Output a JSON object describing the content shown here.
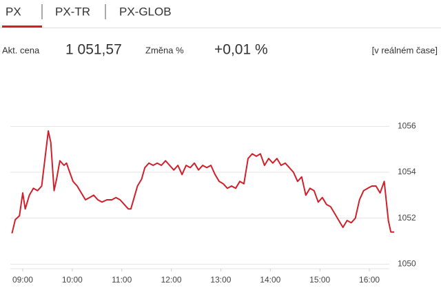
{
  "tabs": [
    "PX",
    "PX-TR",
    "PX-GLOB"
  ],
  "quote": {
    "price_label": "Akt. cena",
    "price": "1 051,57",
    "change_label": "Změna %",
    "change": "+0,01 %",
    "realtime": "[v reálném čase]"
  },
  "chart_data": {
    "type": "line",
    "color": "#d11f2a",
    "grid": true,
    "x": [
      "08:47",
      "08:51",
      "08:56",
      "09:00",
      "09:03",
      "09:08",
      "09:13",
      "09:18",
      "09:23",
      "09:28",
      "09:31",
      "09:34",
      "09:38",
      "09:41",
      "09:45",
      "09:50",
      "09:53",
      "09:57",
      "10:01",
      "10:06",
      "10:11",
      "10:16",
      "10:21",
      "10:26",
      "10:31",
      "10:36",
      "10:42",
      "10:48",
      "10:53",
      "10:58",
      "11:03",
      "11:08",
      "11:11",
      "11:15",
      "11:19",
      "11:24",
      "11:28",
      "11:33",
      "11:38",
      "11:43",
      "11:48",
      "11:53",
      "11:58",
      "12:03",
      "12:08",
      "12:13",
      "12:18",
      "12:23",
      "12:28",
      "12:33",
      "12:38",
      "12:43",
      "12:48",
      "12:53",
      "12:58",
      "13:03",
      "13:08",
      "13:13",
      "13:18",
      "13:23",
      "13:28",
      "13:33",
      "13:38",
      "13:43",
      "13:48",
      "13:53",
      "13:58",
      "14:03",
      "14:08",
      "14:13",
      "14:18",
      "14:23",
      "14:28",
      "14:33",
      "14:38",
      "14:43",
      "14:48",
      "14:53",
      "14:58",
      "15:03",
      "15:08",
      "15:13",
      "15:18",
      "15:23",
      "15:28",
      "15:33",
      "15:38",
      "15:43",
      "15:48",
      "15:53",
      "15:58",
      "16:03",
      "16:08",
      "16:13",
      "16:18",
      "16:23",
      "16:26",
      "16:30"
    ],
    "values": [
      1051.34,
      1051.94,
      1052.1,
      1053.1,
      1052.4,
      1053.0,
      1053.3,
      1053.2,
      1053.4,
      1054.9,
      1055.8,
      1055.3,
      1053.2,
      1053.7,
      1054.5,
      1054.3,
      1054.4,
      1054.0,
      1053.6,
      1053.4,
      1053.1,
      1052.8,
      1052.9,
      1053.0,
      1052.8,
      1052.7,
      1052.8,
      1052.8,
      1052.9,
      1052.8,
      1052.6,
      1052.4,
      1052.4,
      1052.9,
      1053.4,
      1053.7,
      1054.2,
      1054.4,
      1054.3,
      1054.4,
      1054.3,
      1054.5,
      1054.3,
      1054.1,
      1054.3,
      1053.9,
      1054.3,
      1054.2,
      1054.4,
      1054.1,
      1054.3,
      1054.2,
      1054.3,
      1053.9,
      1053.6,
      1053.5,
      1053.3,
      1053.4,
      1053.3,
      1053.6,
      1053.5,
      1054.6,
      1054.8,
      1054.7,
      1054.8,
      1054.3,
      1054.6,
      1054.4,
      1054.6,
      1054.3,
      1054.4,
      1054.2,
      1054.0,
      1053.6,
      1053.8,
      1053.0,
      1053.3,
      1053.2,
      1052.7,
      1052.9,
      1052.6,
      1052.5,
      1052.2,
      1051.9,
      1051.6,
      1051.9,
      1051.8,
      1052.0,
      1052.8,
      1053.2,
      1053.3,
      1053.4,
      1053.4,
      1053.1,
      1053.6,
      1051.9,
      1051.4,
      1051.4
    ],
    "xlim": [
      "08:45",
      "16:30"
    ],
    "xticks": [
      "09:00",
      "10:00",
      "11:00",
      "12:00",
      "13:00",
      "14:00",
      "15:00",
      "16:00"
    ],
    "ylim": [
      1049.8,
      1057.9
    ],
    "yticks": [
      1050,
      1052,
      1054,
      1056
    ]
  }
}
